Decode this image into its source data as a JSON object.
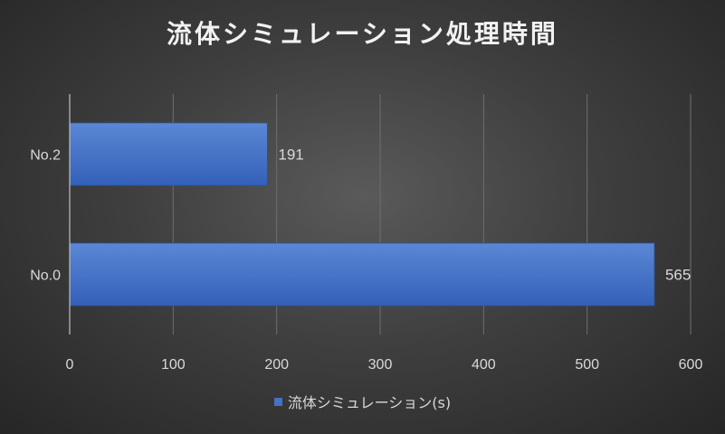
{
  "title": "流体シミュレーション処理時間",
  "chart_data": {
    "type": "bar",
    "orientation": "horizontal",
    "title": "流体シミュレーション処理時間",
    "categories": [
      "No.2",
      "No.0"
    ],
    "series": [
      {
        "name": "流体シミュレーション(s)",
        "values": [
          191,
          565
        ],
        "color": "#4472c4"
      }
    ],
    "xlim": [
      0,
      600
    ],
    "xticks": [
      0,
      100,
      200,
      300,
      400,
      500,
      600
    ],
    "data_labels": true,
    "grid": "vertical",
    "legend_position": "bottom"
  }
}
